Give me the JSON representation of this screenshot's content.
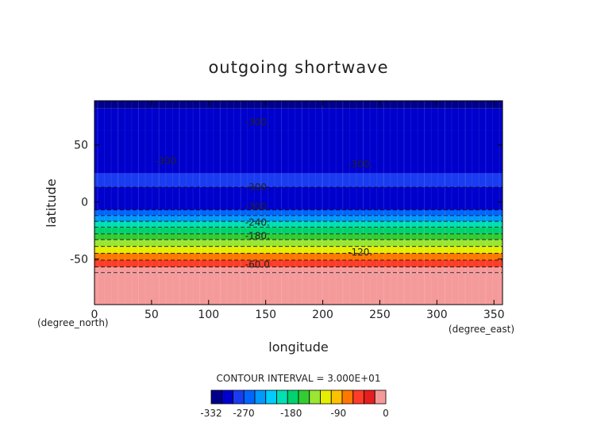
{
  "chart_data": {
    "type": "heatmap",
    "title": "outgoing shortwave",
    "xlabel": "longitude",
    "ylabel": "latitude",
    "x_unit": "(degree_east)",
    "y_unit": "(degree_north)",
    "xlim": [
      0,
      357.5
    ],
    "ylim": [
      -90,
      88.75
    ],
    "x_ticks": [
      0,
      50,
      100,
      150,
      200,
      250,
      300,
      350
    ],
    "y_ticks": [
      -50,
      0,
      50
    ],
    "bands": [
      {
        "lat_min": 82,
        "lat_max": 88.75,
        "value": -332
      },
      {
        "lat_min": 63,
        "lat_max": 82,
        "value": -302
      },
      {
        "lat_min": 25,
        "lat_max": 63,
        "value": -302
      },
      {
        "lat_min": 13,
        "lat_max": 25,
        "value": -272
      },
      {
        "lat_min": -7,
        "lat_max": 13,
        "value": -302
      },
      {
        "lat_min": -12,
        "lat_max": -7,
        "value": -255
      },
      {
        "lat_min": -17,
        "lat_max": -12,
        "value": -230
      },
      {
        "lat_min": -22,
        "lat_max": -17,
        "value": -205
      },
      {
        "lat_min": -28,
        "lat_max": -22,
        "value": -185
      },
      {
        "lat_min": -33,
        "lat_max": -28,
        "value": -165
      },
      {
        "lat_min": -39,
        "lat_max": -33,
        "value": -140
      },
      {
        "lat_min": -45,
        "lat_max": -39,
        "value": -112
      },
      {
        "lat_min": -51,
        "lat_max": -45,
        "value": -80
      },
      {
        "lat_min": -57,
        "lat_max": -51,
        "value": -52
      },
      {
        "lat_min": -62,
        "lat_max": -57,
        "value": -20
      },
      {
        "lat_min": -90,
        "lat_max": -62,
        "value": -5
      }
    ],
    "contour_lines": [
      {
        "lat": 13,
        "style": "dashed"
      },
      {
        "lat": -7,
        "style": "dashed"
      },
      {
        "lat": -12,
        "style": "dashed"
      },
      {
        "lat": -17,
        "style": "dashed"
      },
      {
        "lat": -22,
        "style": "dashed"
      },
      {
        "lat": -28,
        "style": "dashed"
      },
      {
        "lat": -33,
        "style": "dashed"
      },
      {
        "lat": -39,
        "style": "dashed"
      },
      {
        "lat": -45,
        "style": "dashed"
      },
      {
        "lat": -51,
        "style": "dashed"
      },
      {
        "lat": -57,
        "style": "dashed"
      },
      {
        "lat": -62,
        "style": "dashed"
      }
    ],
    "contour_labels": [
      {
        "text": "-300.",
        "lon": 132,
        "lat": 70
      },
      {
        "text": "-300.",
        "lon": 53,
        "lat": 36
      },
      {
        "text": "-300.",
        "lon": 222,
        "lat": 33
      },
      {
        "text": "-300.",
        "lon": 132,
        "lat": 13
      },
      {
        "text": "-300.",
        "lon": 132,
        "lat": -4
      },
      {
        "text": "-240.",
        "lon": 132,
        "lat": -18
      },
      {
        "text": "-180.",
        "lon": 132,
        "lat": -30
      },
      {
        "text": "-120.",
        "lon": 222,
        "lat": -44
      },
      {
        "text": "-60.0",
        "lon": 132,
        "lat": -55
      }
    ],
    "colorbar": {
      "label": "CONTOUR INTERVAL = 3.000E+01",
      "colors": [
        "#00008b",
        "#0000cd",
        "#1a3cf0",
        "#0066ff",
        "#0099ff",
        "#00ccff",
        "#00e0b4",
        "#00d26e",
        "#33cc33",
        "#99e633",
        "#e6ee00",
        "#ffc000",
        "#ff7800",
        "#ff3c28",
        "#e61e1e",
        "#f59a9a"
      ],
      "tick_labels": [
        "-332",
        "-270",
        "-180",
        "-90",
        "0"
      ],
      "tick_values": [
        -332,
        -270,
        -180,
        -90,
        0
      ],
      "vmin": -332,
      "vmax": 0
    },
    "grid": false
  }
}
